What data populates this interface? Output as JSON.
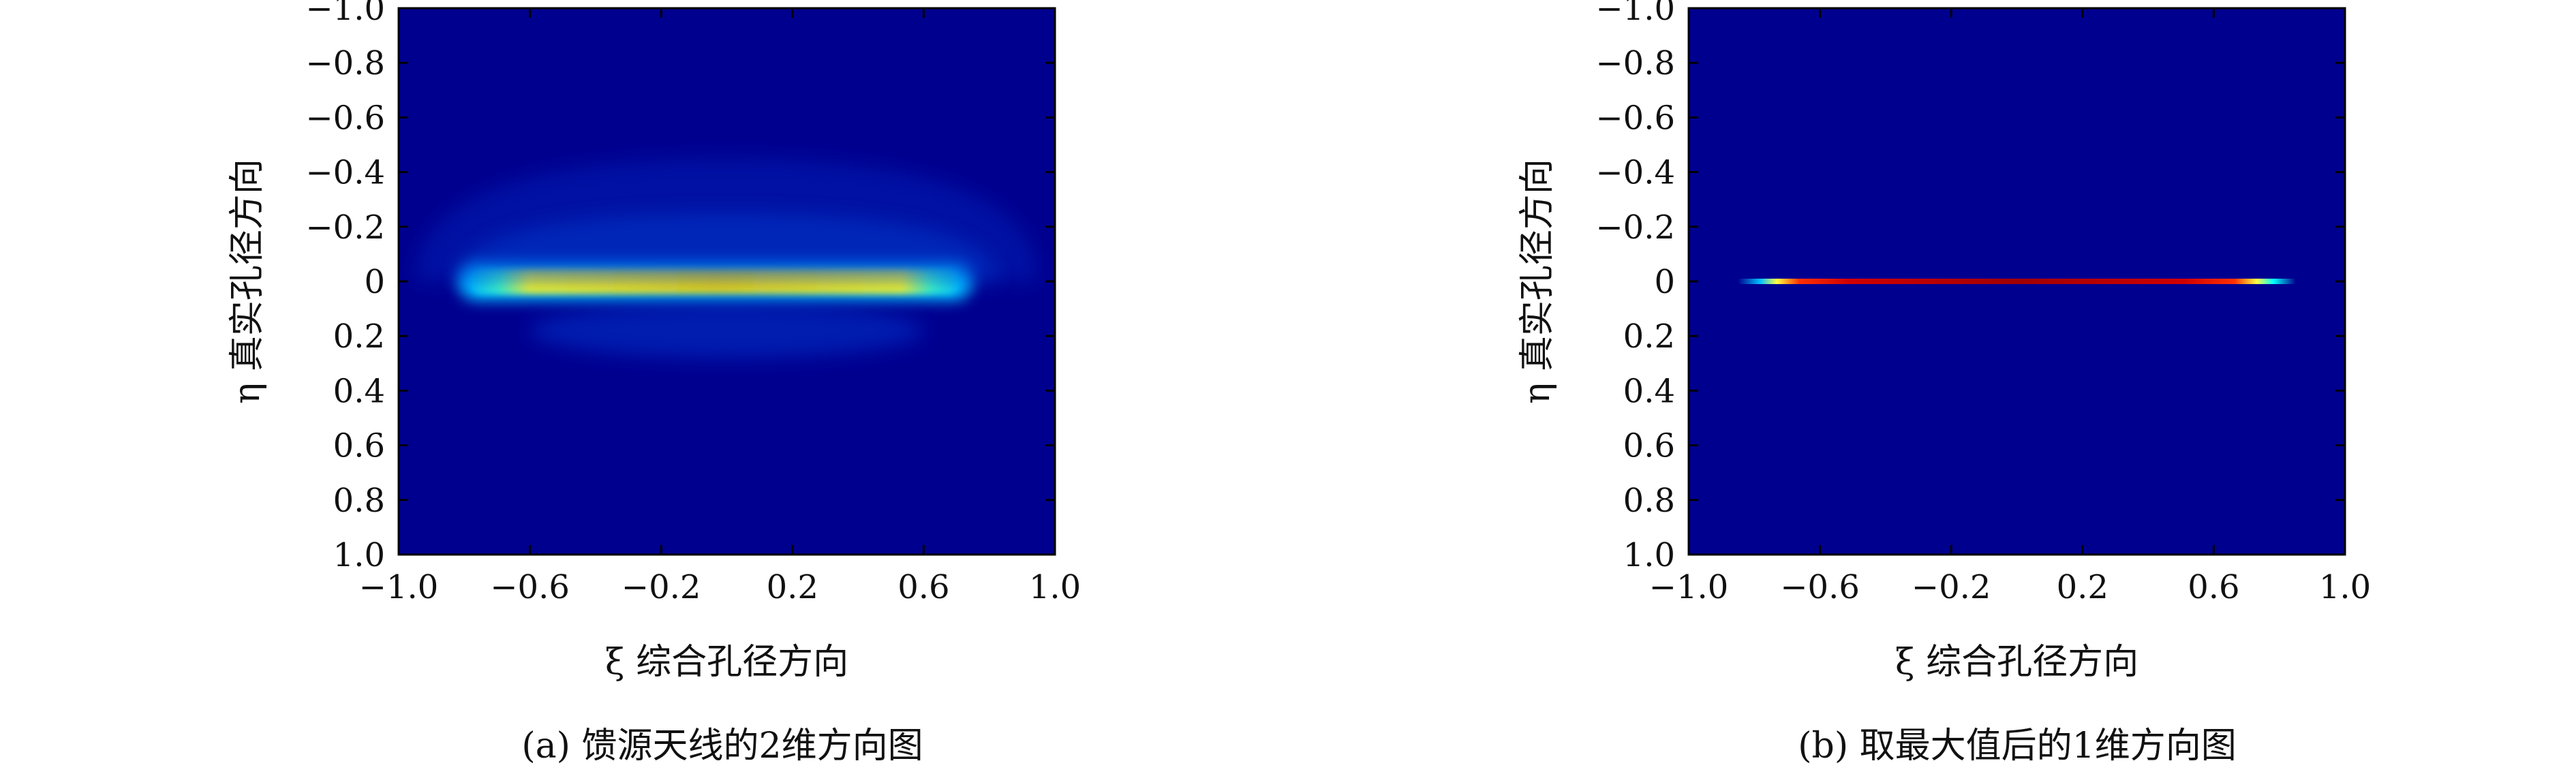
{
  "chart_data": [
    {
      "type": "heatmap",
      "panel_id": "a",
      "caption": "(a) 馈源天线的2维方向图",
      "xlabel": "ξ 综合孔径方向",
      "ylabel": "η 真实孔径方向",
      "xlim": [
        -1.0,
        1.0
      ],
      "ylim": [
        -1.0,
        1.0
      ],
      "y_inverted": true,
      "x_ticks": [
        "-1.0",
        "-0.6",
        "-0.2",
        "0.2",
        "0.6",
        "1.0"
      ],
      "y_ticks": [
        "-1.0",
        "-0.8",
        "-0.6",
        "-0.4",
        "-0.2",
        "0",
        "0.2",
        "0.4",
        "0.6",
        "0.8",
        "1.0"
      ],
      "colormap": "jet",
      "background_value": 0.05,
      "features": [
        {
          "kind": "beam_band",
          "xmin": -0.72,
          "xmax": 0.65,
          "y_center": 0.0,
          "y_halfwidth": 0.03,
          "peak": 0.95
        },
        {
          "kind": "beam_halo",
          "xmin": -0.82,
          "xmax": 0.75,
          "y_center": 0.0,
          "y_halfwidth": 0.07,
          "peak": 0.45
        },
        {
          "kind": "sidelobe_arc",
          "xmin": -1.0,
          "xmax": 1.0,
          "y_top": -0.45,
          "peak": 0.12
        }
      ]
    },
    {
      "type": "heatmap",
      "panel_id": "b",
      "caption": "(b) 取最大值后的1维方向图",
      "xlabel": "ξ 综合孔径方向",
      "ylabel": "η 真实孔径方向",
      "xlim": [
        -1.0,
        1.0
      ],
      "ylim": [
        -1.0,
        1.0
      ],
      "y_inverted": true,
      "x_ticks": [
        "-1.0",
        "-0.6",
        "-0.2",
        "0.2",
        "0.6",
        "1.0"
      ],
      "y_ticks": [
        "-1.0",
        "-0.8",
        "-0.6",
        "-0.4",
        "-0.2",
        "0",
        "0.2",
        "0.4",
        "0.6",
        "0.8",
        "1.0"
      ],
      "colormap": "jet",
      "background_value": 0.05,
      "features": [
        {
          "kind": "line",
          "xmin": -0.85,
          "xmax": 0.85,
          "y_center": 0.0,
          "peak": 0.95,
          "edge_fade": [
            "yellow",
            "cyan"
          ]
        }
      ]
    }
  ],
  "colors": {
    "jet_background": "#00008f",
    "jet_dark_red": "#8b0000",
    "jet_red": "#ff0000",
    "jet_yellow": "#ffff00",
    "jet_cyan": "#00ffff"
  }
}
